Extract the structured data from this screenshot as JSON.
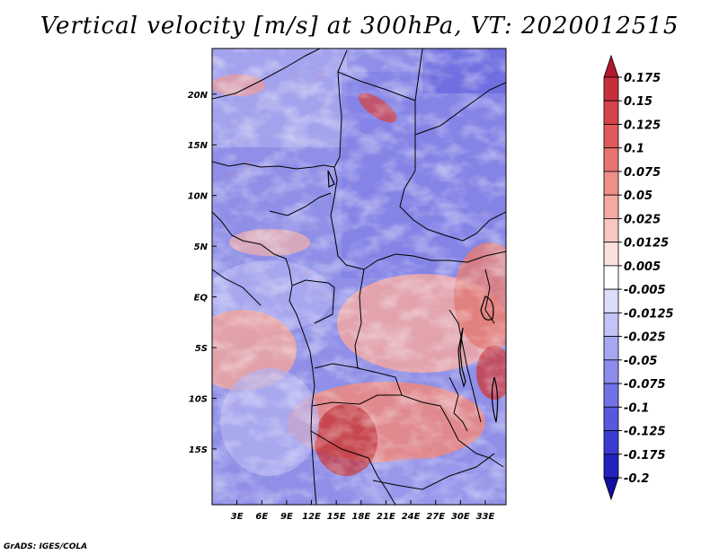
{
  "title": "Vertical velocity [m/s] at 300hPa, VT: 2020012515",
  "footer": "GrADS: IGES/COLA",
  "map": {
    "variable": "Vertical velocity",
    "units": "m/s",
    "level": "300hPa",
    "valid_time": "2020012515",
    "lon_range": [
      0,
      35.5
    ],
    "lat_range": [
      -20.5,
      24.5
    ],
    "x_ticks": [
      "3E",
      "6E",
      "9E",
      "12E",
      "15E",
      "18E",
      "21E",
      "24E",
      "27E",
      "30E",
      "33E"
    ],
    "y_ticks": [
      "20N",
      "15N",
      "10N",
      "5N",
      "EQ",
      "5S",
      "10S",
      "15S"
    ]
  },
  "colorbar": {
    "labels": [
      "0.175",
      "0.15",
      "0.125",
      "0.1",
      "0.075",
      "0.05",
      "0.025",
      "0.0125",
      "0.005",
      "-0.005",
      "-0.0125",
      "-0.025",
      "-0.05",
      "-0.075",
      "-0.1",
      "-0.125",
      "-0.175",
      "-0.2"
    ],
    "colors": [
      "#b2182b",
      "#c62f3a",
      "#d6434b",
      "#e05a5c",
      "#e8736f",
      "#ef8f88",
      "#f4aaa3",
      "#f8c7c1",
      "#fbe1dd",
      "#ffffff",
      "#dcdcfb",
      "#c3c3f7",
      "#a6a6f1",
      "#8c8cec",
      "#7272e6",
      "#5858de",
      "#3c3cd2",
      "#2323bd",
      "#1010a0"
    ]
  }
}
